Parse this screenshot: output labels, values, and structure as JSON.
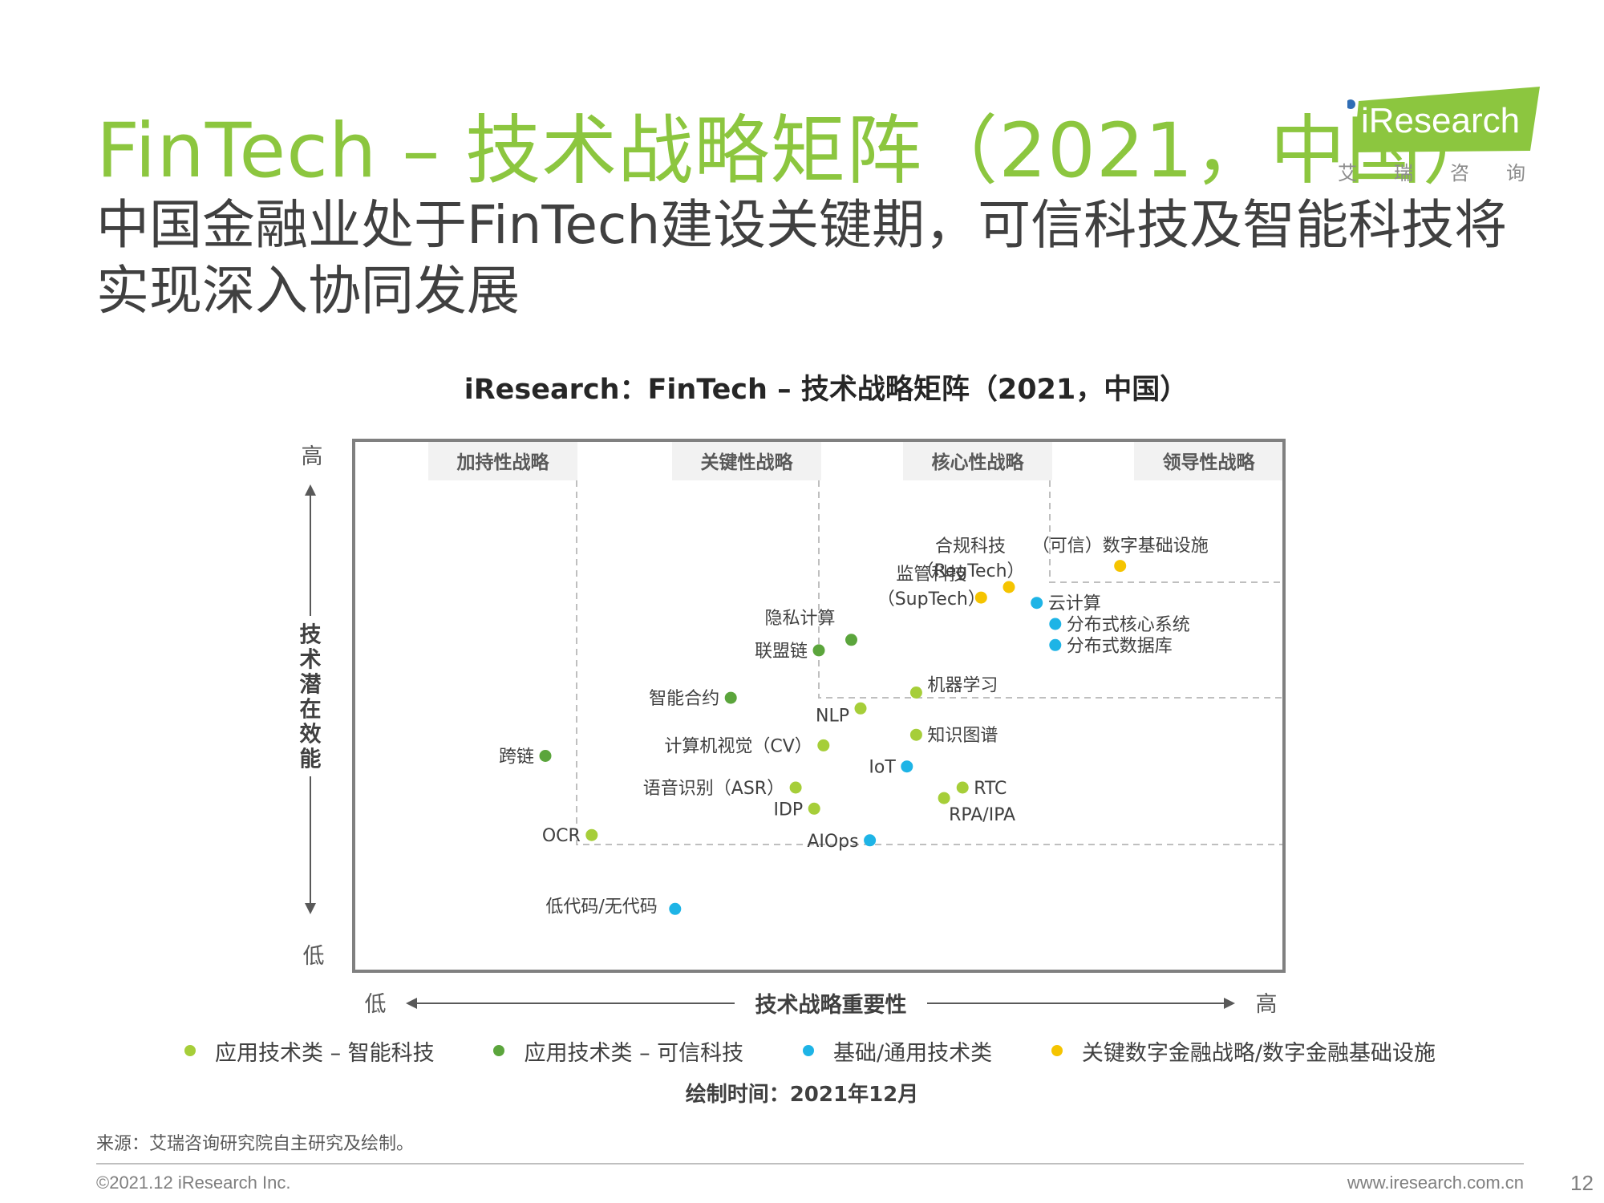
{
  "page": {
    "title": "FinTech – 技术战略矩阵（2021，中国）",
    "subtitle": "中国金融业处于FinTech建设关键期，可信科技及智能科技将实现深入协同发展",
    "logo_text": "iResearch",
    "logo_sub": "艾瑞咨询",
    "source": "来源：艾瑞咨询研究院自主研究及绘制。",
    "copyright": "©2021.12 iResearch Inc.",
    "website": "www.iresearch.com.cn",
    "page_number": "12",
    "drawn_time": "绘制时间：2021年12月"
  },
  "colors": {
    "accent": "#8cc63f",
    "smart_tech": "#a6ce39",
    "trusted_tech": "#5ba53c",
    "infrastructure": "#1eb4e6",
    "key_digital": "#f5c400"
  },
  "chart_data": {
    "type": "scatter",
    "title": "iResearch：FinTech – 技术战略矩阵（2021，中国）",
    "xlabel": "技术战略重要性",
    "ylabel": "技术潜在效能",
    "x_low": "低",
    "x_high": "高",
    "y_low": "低",
    "y_high": "高",
    "xlim": [
      0,
      100
    ],
    "ylim": [
      0,
      100
    ],
    "zones": [
      "加持性战略",
      "关键性战略",
      "核心性战略",
      "领导性战略"
    ],
    "categories": [
      {
        "key": "smart",
        "name": "应用技术类 – 智能科技",
        "color": "#a6ce39"
      },
      {
        "key": "trusted",
        "name": "应用技术类 – 可信科技",
        "color": "#5ba53c"
      },
      {
        "key": "infra",
        "name": "基础/通用技术类",
        "color": "#1eb4e6"
      },
      {
        "key": "key",
        "name": "关键数字金融战略/数字金融基础设施",
        "color": "#f5c400"
      }
    ],
    "points": [
      {
        "label": "（可信）数字基础设施",
        "category": "key",
        "x": 82.5,
        "y": 76.5
      },
      {
        "label": "合规科技\n（RegTech）",
        "category": "key",
        "x": 70.5,
        "y": 72.5
      },
      {
        "label": "监管科技\n（SupTech）",
        "category": "key",
        "x": 67.5,
        "y": 70.5
      },
      {
        "label": "云计算",
        "category": "infra",
        "x": 73.5,
        "y": 69.5
      },
      {
        "label": "分布式核心系统",
        "category": "infra",
        "x": 75.5,
        "y": 65.5
      },
      {
        "label": "分布式数据库",
        "category": "infra",
        "x": 75.5,
        "y": 61.5
      },
      {
        "label": "隐私计算",
        "category": "trusted",
        "x": 53.5,
        "y": 62.5
      },
      {
        "label": "联盟链",
        "category": "trusted",
        "x": 50.0,
        "y": 60.5
      },
      {
        "label": "机器学习",
        "category": "smart",
        "x": 60.5,
        "y": 52.5
      },
      {
        "label": "智能合约",
        "category": "trusted",
        "x": 40.5,
        "y": 51.5
      },
      {
        "label": "NLP",
        "category": "smart",
        "x": 54.5,
        "y": 49.5
      },
      {
        "label": "知识图谱",
        "category": "smart",
        "x": 60.5,
        "y": 44.5
      },
      {
        "label": "计算机视觉（CV）",
        "category": "smart",
        "x": 50.5,
        "y": 42.5
      },
      {
        "label": "IoT",
        "category": "infra",
        "x": 59.5,
        "y": 38.5
      },
      {
        "label": "跨链",
        "category": "trusted",
        "x": 20.5,
        "y": 40.5
      },
      {
        "label": "语音识别（ASR）",
        "category": "smart",
        "x": 47.5,
        "y": 34.5
      },
      {
        "label": "RTC",
        "category": "smart",
        "x": 65.5,
        "y": 34.5
      },
      {
        "label": "RPA/IPA",
        "category": "smart",
        "x": 63.5,
        "y": 32.5
      },
      {
        "label": "IDP",
        "category": "smart",
        "x": 49.5,
        "y": 30.5
      },
      {
        "label": "OCR",
        "category": "smart",
        "x": 25.5,
        "y": 25.5
      },
      {
        "label": "AIOps",
        "category": "infra",
        "x": 55.5,
        "y": 24.5
      },
      {
        "label": "低代码/无代码",
        "category": "infra",
        "x": 34.5,
        "y": 11.5
      }
    ],
    "legend_position": "bottom",
    "grid": false
  }
}
